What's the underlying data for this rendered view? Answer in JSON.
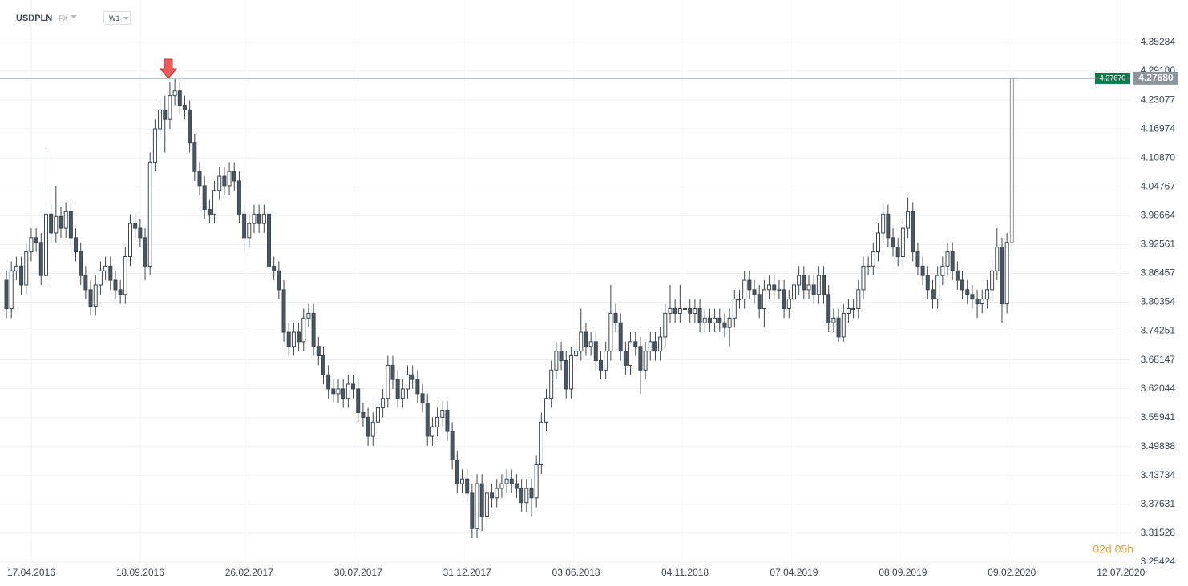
{
  "chart_data": {
    "type": "candlestick",
    "title": "USDPLN",
    "market": "FX",
    "timeframe": "W1",
    "timer": "02d 05h",
    "grid": true,
    "colors": {
      "up": "#ffffff",
      "down": "#4b5660",
      "outline": "#3c4650",
      "grid": "#eef0f2"
    },
    "xlim": [
      -1.3,
      226.9
    ],
    "xticks": [
      {
        "value": 5,
        "label": "17.04.2016"
      },
      {
        "value": 27,
        "label": "18.09.2016"
      },
      {
        "value": 49,
        "label": "26.02.2017"
      },
      {
        "value": 71,
        "label": "30.07.2017"
      },
      {
        "value": 93,
        "label": "31.12.2017"
      },
      {
        "value": 115,
        "label": "03.06.2018"
      },
      {
        "value": 137,
        "label": "04.11.2018"
      },
      {
        "value": 159,
        "label": "07.04.2019"
      },
      {
        "value": 181,
        "label": "08.09.2019"
      },
      {
        "value": 203,
        "label": "09.02.2020"
      },
      {
        "value": 225,
        "label": "12.07.2020"
      }
    ],
    "ylim": [
      3.2492,
      4.4425
    ],
    "yticks": [
      3.25424,
      3.31528,
      3.37631,
      3.43734,
      3.49838,
      3.55941,
      3.62044,
      3.68147,
      3.74251,
      3.80354,
      3.86457,
      3.92561,
      3.98664,
      4.04767,
      {
        "value": 4.1087,
        "label": "4.10870"
      },
      4.16974,
      4.23077,
      {
        "value": 4.2918,
        "label": "4.29180"
      },
      4.35284
    ],
    "price_lines": [
      {
        "value": 4.2767,
        "label": "4.27670",
        "color": "#0f7a50"
      },
      {
        "value": 4.2768,
        "label": "4.27680",
        "color": "#8d959c"
      }
    ],
    "series": {
      "open": [
        3.85,
        3.79,
        3.87,
        3.88,
        3.84,
        3.91,
        3.94,
        3.93,
        3.86,
        3.99,
        3.95,
        3.985,
        3.96,
        3.995,
        3.94,
        3.91,
        3.86,
        3.83,
        3.795,
        3.84,
        3.87,
        3.88,
        3.85,
        3.83,
        3.82,
        3.9,
        3.97,
        3.96,
        3.94,
        3.88,
        4.1,
        4.17,
        4.21,
        4.19,
        4.24,
        4.25,
        4.22,
        4.21,
        4.14,
        4.08,
        4.05,
        4.0,
        3.99,
        4.04,
        4.07,
        4.05,
        4.08,
        4.06,
        3.99,
        3.94,
        3.97,
        3.99,
        3.97,
        3.99,
        3.88,
        3.87,
        3.83,
        3.74,
        3.71,
        3.74,
        3.72,
        3.77,
        3.78,
        3.71,
        3.69,
        3.65,
        3.62,
        3.61,
        3.62,
        3.6,
        3.63,
        3.62,
        3.57,
        3.56,
        3.52,
        3.55,
        3.58,
        3.6,
        3.67,
        3.64,
        3.6,
        3.62,
        3.65,
        3.64,
        3.61,
        3.59,
        3.52,
        3.54,
        3.56,
        3.575,
        3.53,
        3.47,
        3.42,
        3.43,
        3.4,
        3.325,
        3.42,
        3.35,
        3.4,
        3.39,
        3.41,
        3.42,
        3.43,
        3.42,
        3.41,
        3.38,
        3.41,
        3.39,
        3.46,
        3.55,
        3.6,
        3.66,
        3.7,
        3.68,
        3.62,
        3.69,
        3.7,
        3.74,
        3.71,
        3.72,
        3.68,
        3.66,
        3.7,
        3.78,
        3.76,
        3.7,
        3.67,
        3.72,
        3.71,
        3.66,
        3.7,
        3.72,
        3.7,
        3.73,
        3.78,
        3.79,
        3.78,
        3.79,
        3.79,
        3.78,
        3.79,
        3.76,
        3.77,
        3.76,
        3.77,
        3.76,
        3.75,
        3.77,
        3.81,
        3.81,
        3.85,
        3.83,
        3.82,
        3.79,
        3.83,
        3.84,
        3.83,
        3.83,
        3.79,
        3.81,
        3.84,
        3.86,
        3.83,
        3.84,
        3.82,
        3.86,
        3.82,
        3.76,
        3.77,
        3.73,
        3.78,
        3.79,
        3.79,
        3.83,
        3.88,
        3.88,
        3.91,
        3.95,
        3.99,
        3.94,
        3.92,
        3.9,
        3.96,
        3.995,
        3.91,
        3.88,
        3.86,
        3.83,
        3.81,
        3.86,
        3.88,
        3.91,
        3.87,
        3.85,
        3.83,
        3.82,
        3.81,
        3.8,
        3.81,
        3.83,
        3.87,
        3.92,
        3.8,
        3.93
      ],
      "high": [
        3.87,
        3.89,
        3.9,
        3.9,
        3.93,
        3.96,
        3.96,
        3.95,
        4.13,
        4.01,
        4.05,
        4.005,
        4.015,
        4.015,
        3.96,
        3.93,
        3.88,
        3.85,
        3.86,
        3.89,
        3.9,
        3.9,
        3.87,
        3.85,
        3.92,
        3.99,
        3.99,
        3.98,
        3.96,
        4.12,
        4.19,
        4.23,
        4.24,
        4.27,
        4.275,
        4.27,
        4.24,
        4.23,
        4.16,
        4.1,
        4.07,
        4.02,
        4.06,
        4.09,
        4.09,
        4.1,
        4.1,
        4.08,
        4.01,
        3.99,
        4.01,
        4.01,
        4.01,
        4.01,
        3.9,
        3.89,
        3.85,
        3.76,
        3.76,
        3.76,
        3.79,
        3.8,
        3.8,
        3.73,
        3.71,
        3.67,
        3.64,
        3.64,
        3.64,
        3.65,
        3.65,
        3.64,
        3.59,
        3.58,
        3.57,
        3.6,
        3.62,
        3.69,
        3.69,
        3.66,
        3.64,
        3.67,
        3.67,
        3.66,
        3.63,
        3.61,
        3.56,
        3.58,
        3.595,
        3.595,
        3.55,
        3.49,
        3.45,
        3.45,
        3.42,
        3.44,
        3.44,
        3.42,
        3.42,
        3.43,
        3.44,
        3.45,
        3.45,
        3.44,
        3.43,
        3.43,
        3.43,
        3.48,
        3.57,
        3.62,
        3.68,
        3.72,
        3.72,
        3.7,
        3.71,
        3.72,
        3.79,
        3.76,
        3.74,
        3.74,
        3.7,
        3.72,
        3.84,
        3.8,
        3.78,
        3.72,
        3.74,
        3.74,
        3.73,
        3.72,
        3.74,
        3.74,
        3.75,
        3.8,
        3.84,
        3.81,
        3.84,
        3.81,
        3.81,
        3.81,
        3.81,
        3.79,
        3.79,
        3.79,
        3.79,
        3.78,
        3.79,
        3.83,
        3.83,
        3.87,
        3.87,
        3.85,
        3.84,
        3.85,
        3.86,
        3.86,
        3.85,
        3.85,
        3.83,
        3.86,
        3.88,
        3.88,
        3.86,
        3.86,
        3.88,
        3.88,
        3.84,
        3.79,
        3.79,
        3.8,
        3.81,
        3.81,
        3.85,
        3.9,
        3.9,
        3.93,
        3.97,
        4.01,
        4.01,
        3.96,
        3.94,
        3.98,
        4.025,
        4.015,
        3.93,
        3.9,
        3.88,
        3.85,
        3.88,
        3.9,
        3.93,
        3.93,
        3.89,
        3.87,
        3.85,
        3.84,
        3.83,
        3.83,
        3.85,
        3.89,
        3.96,
        3.94,
        3.95,
        4.2768
      ],
      "low": [
        3.77,
        3.77,
        3.85,
        3.82,
        3.82,
        3.89,
        3.91,
        3.84,
        3.84,
        3.93,
        3.93,
        3.94,
        3.94,
        3.92,
        3.89,
        3.84,
        3.81,
        3.775,
        3.775,
        3.82,
        3.85,
        3.83,
        3.81,
        3.8,
        3.8,
        3.88,
        3.94,
        3.92,
        3.85,
        3.86,
        4.08,
        4.15,
        4.12,
        4.17,
        4.22,
        4.2,
        4.19,
        4.12,
        4.06,
        4.03,
        3.98,
        3.97,
        3.97,
        4.02,
        4.03,
        4.03,
        4.04,
        3.97,
        3.91,
        3.92,
        3.95,
        3.95,
        3.95,
        3.86,
        3.85,
        3.81,
        3.72,
        3.69,
        3.69,
        3.7,
        3.7,
        3.75,
        3.69,
        3.67,
        3.63,
        3.6,
        3.59,
        3.59,
        3.58,
        3.58,
        3.6,
        3.55,
        3.54,
        3.5,
        3.5,
        3.53,
        3.56,
        3.58,
        3.62,
        3.58,
        3.58,
        3.6,
        3.62,
        3.59,
        3.57,
        3.5,
        3.5,
        3.52,
        3.54,
        3.51,
        3.45,
        3.4,
        3.4,
        3.38,
        3.305,
        3.305,
        3.32,
        3.33,
        3.37,
        3.37,
        3.39,
        3.4,
        3.4,
        3.39,
        3.36,
        3.36,
        3.35,
        3.37,
        3.44,
        3.53,
        3.58,
        3.64,
        3.66,
        3.6,
        3.6,
        3.67,
        3.68,
        3.69,
        3.69,
        3.66,
        3.64,
        3.64,
        3.68,
        3.74,
        3.68,
        3.65,
        3.65,
        3.69,
        3.61,
        3.64,
        3.68,
        3.68,
        3.68,
        3.71,
        3.76,
        3.76,
        3.76,
        3.77,
        3.76,
        3.76,
        3.74,
        3.74,
        3.74,
        3.74,
        3.74,
        3.73,
        3.71,
        3.75,
        3.79,
        3.79,
        3.81,
        3.8,
        3.77,
        3.75,
        3.81,
        3.81,
        3.81,
        3.77,
        3.77,
        3.79,
        3.82,
        3.81,
        3.81,
        3.8,
        3.8,
        3.8,
        3.74,
        3.74,
        3.72,
        3.72,
        3.76,
        3.77,
        3.77,
        3.81,
        3.86,
        3.86,
        3.89,
        3.93,
        3.92,
        3.9,
        3.88,
        3.88,
        3.94,
        3.89,
        3.86,
        3.84,
        3.81,
        3.79,
        3.79,
        3.84,
        3.86,
        3.85,
        3.83,
        3.81,
        3.8,
        3.79,
        3.77,
        3.78,
        3.79,
        3.81,
        3.85,
        3.76,
        3.78,
        3.91
      ],
      "close": [
        3.79,
        3.87,
        3.88,
        3.84,
        3.91,
        3.94,
        3.93,
        3.86,
        3.99,
        3.95,
        3.985,
        3.96,
        3.995,
        3.94,
        3.91,
        3.86,
        3.83,
        3.795,
        3.84,
        3.87,
        3.88,
        3.85,
        3.83,
        3.82,
        3.9,
        3.97,
        3.96,
        3.94,
        3.88,
        4.1,
        4.17,
        4.21,
        4.19,
        4.24,
        4.25,
        4.22,
        4.21,
        4.14,
        4.08,
        4.05,
        4.0,
        3.99,
        4.04,
        4.07,
        4.05,
        4.08,
        4.06,
        3.99,
        3.94,
        3.97,
        3.99,
        3.97,
        3.99,
        3.88,
        3.87,
        3.83,
        3.74,
        3.71,
        3.74,
        3.72,
        3.77,
        3.78,
        3.71,
        3.69,
        3.65,
        3.62,
        3.61,
        3.62,
        3.6,
        3.63,
        3.62,
        3.57,
        3.56,
        3.52,
        3.55,
        3.58,
        3.6,
        3.67,
        3.64,
        3.6,
        3.62,
        3.65,
        3.64,
        3.61,
        3.59,
        3.52,
        3.54,
        3.56,
        3.575,
        3.53,
        3.47,
        3.42,
        3.43,
        3.4,
        3.325,
        3.42,
        3.35,
        3.4,
        3.39,
        3.41,
        3.42,
        3.43,
        3.42,
        3.41,
        3.38,
        3.41,
        3.39,
        3.46,
        3.55,
        3.6,
        3.66,
        3.7,
        3.68,
        3.62,
        3.69,
        3.7,
        3.74,
        3.71,
        3.72,
        3.68,
        3.66,
        3.7,
        3.78,
        3.76,
        3.7,
        3.67,
        3.72,
        3.71,
        3.66,
        3.7,
        3.72,
        3.7,
        3.73,
        3.78,
        3.79,
        3.78,
        3.79,
        3.79,
        3.78,
        3.79,
        3.76,
        3.77,
        3.76,
        3.77,
        3.76,
        3.75,
        3.77,
        3.81,
        3.81,
        3.85,
        3.83,
        3.82,
        3.79,
        3.83,
        3.84,
        3.83,
        3.83,
        3.79,
        3.81,
        3.84,
        3.86,
        3.83,
        3.84,
        3.82,
        3.86,
        3.82,
        3.76,
        3.77,
        3.73,
        3.78,
        3.79,
        3.79,
        3.83,
        3.88,
        3.88,
        3.91,
        3.95,
        3.99,
        3.94,
        3.92,
        3.9,
        3.96,
        3.995,
        3.91,
        3.88,
        3.86,
        3.83,
        3.81,
        3.86,
        3.88,
        3.91,
        3.87,
        3.85,
        3.83,
        3.82,
        3.81,
        3.8,
        3.81,
        3.83,
        3.87,
        3.92,
        3.8,
        3.93,
        4.2768
      ]
    }
  }
}
